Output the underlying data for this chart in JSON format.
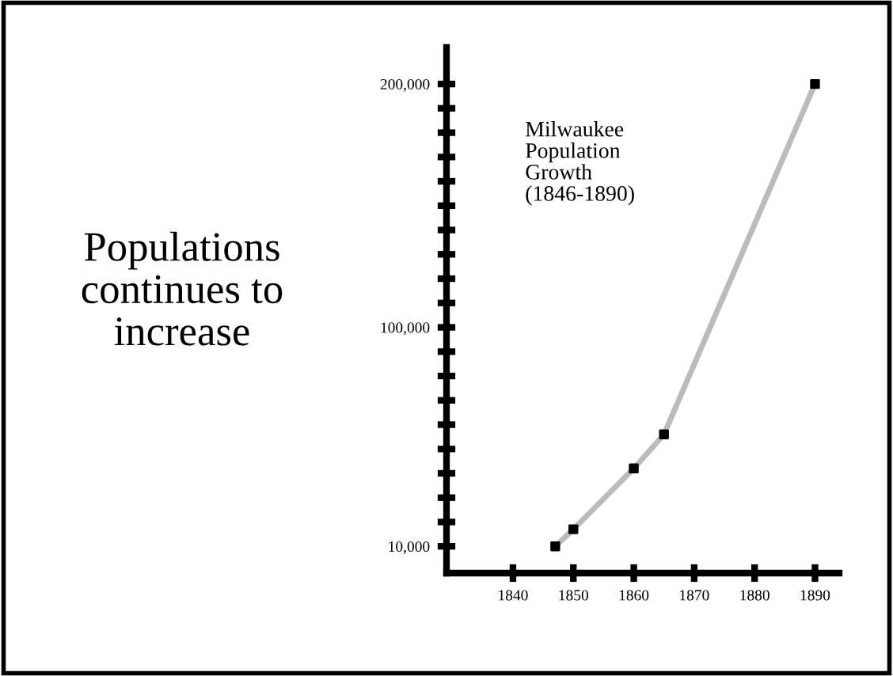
{
  "chart_data": {
    "type": "line",
    "title": "Milwaukee\nPopulation\nGrowth\n(1846-1890)",
    "annotations": [
      "Populations\ncontinues to\nincrease"
    ],
    "x": [
      1847,
      1850,
      1860,
      1865,
      1890
    ],
    "series": [
      {
        "color": "#bbbbbb",
        "values": [
          10000,
          17000,
          42000,
          56000,
          200000
        ]
      }
    ],
    "marker": "square",
    "line_style": "solid",
    "grid": false,
    "legend": false,
    "xlim": [
      1829,
      1894
    ],
    "xticks": [
      1840,
      1850,
      1860,
      1870,
      1880,
      1890
    ],
    "ylim": [
      -1000,
      215000
    ],
    "yticks": [
      {
        "value": 10000,
        "label": "10,000"
      },
      {
        "value": 20000,
        "label": null
      },
      {
        "value": 30000,
        "label": null
      },
      {
        "value": 40000,
        "label": null
      },
      {
        "value": 50000,
        "label": null
      },
      {
        "value": 60000,
        "label": null
      },
      {
        "value": 70000,
        "label": null
      },
      {
        "value": 80000,
        "label": null
      },
      {
        "value": 90000,
        "label": null
      },
      {
        "value": 100000,
        "label": "100,000"
      },
      {
        "value": 110000,
        "label": null
      },
      {
        "value": 120000,
        "label": null
      },
      {
        "value": 130000,
        "label": null
      },
      {
        "value": 140000,
        "label": null
      },
      {
        "value": 150000,
        "label": null
      },
      {
        "value": 160000,
        "label": null
      },
      {
        "value": 170000,
        "label": null
      },
      {
        "value": 180000,
        "label": null
      },
      {
        "value": 190000,
        "label": null
      },
      {
        "value": 200000,
        "label": "200,000"
      }
    ]
  }
}
